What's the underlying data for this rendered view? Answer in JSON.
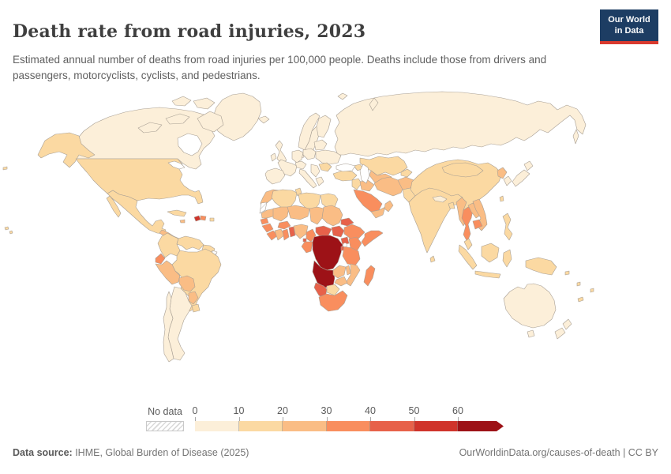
{
  "header": {
    "title": "Death rate from road injuries, 2023",
    "subtitle": "Estimated annual number of deaths from road injuries per 100,000 people. Deaths include those from drivers and passengers, motorcyclists, cyclists, and pedestrians."
  },
  "logo": {
    "line1": "Our World",
    "line2": "in Data",
    "bg_color": "#1d3d63",
    "accent_color": "#d93a2e"
  },
  "legend": {
    "no_data_label": "No data",
    "ticks": [
      "0",
      "10",
      "20",
      "30",
      "40",
      "50",
      "60"
    ]
  },
  "footer": {
    "source_label": "Data source:",
    "source_text": " IHME, Global Burden of Disease (2025)",
    "right_text": "OurWorldinData.org/causes-of-death | CC BY"
  },
  "chart_data": {
    "type": "choropleth",
    "title": "Death rate from road injuries, 2023",
    "year": "2023",
    "unit": "deaths from road injuries per 100,000 people",
    "legend_position": "bottom",
    "legend_bins": [
      {
        "range": "0-10",
        "color": "#FCEFD9"
      },
      {
        "range": "10-20",
        "color": "#FBD9A2"
      },
      {
        "range": "20-30",
        "color": "#FABD85"
      },
      {
        "range": "30-40",
        "color": "#F98E5E"
      },
      {
        "range": "40-50",
        "color": "#E7614A"
      },
      {
        "range": "50-60",
        "color": "#D0342B"
      },
      {
        "range": "60+",
        "color": "#9D1217"
      }
    ],
    "no_data_color": "hatched",
    "country_bin_assignments": {
      "canada": 0,
      "greenland": 0,
      "alaska": 1,
      "usa": 1,
      "mexico": 1,
      "cuba": 1,
      "jamaica": 2,
      "haiti": 5,
      "dominican-republic": 3,
      "puerto-rico": 1,
      "central-america": 2,
      "colombia": 1,
      "venezuela": 1,
      "guyanas": 1,
      "french-guiana": "nodata",
      "ecuador": 3,
      "peru": 2,
      "brazil": 1,
      "bolivia": 2,
      "paraguay": 2,
      "argentina": 0,
      "chile": 0,
      "uruguay": 1,
      "iceland": 0,
      "norway": 0,
      "sweden": 0,
      "finland": 0,
      "denmark": 0,
      "uk": 0,
      "ireland": 0,
      "france": 0,
      "iberia": 0,
      "germany": 0,
      "central-europe": 0,
      "italy": 0,
      "poland": 0,
      "baltics-belarus": 0,
      "ukraine": 0,
      "romania": 1,
      "balkans": 0,
      "greece": 0,
      "svalbard": 0,
      "novaya-zemlya": 0,
      "sakhalin": 0,
      "russia": 0,
      "kazakhstan": 1,
      "central-asia": 2,
      "kyrgyz-tajik": 1,
      "turkey": 1,
      "caucasus": 1,
      "syria-levant": 1,
      "iraq": 2,
      "saudi-arabia": 3,
      "yemen": 2,
      "oman": 2,
      "iran": 2,
      "afghanistan": 2,
      "pakistan": 1,
      "india": 1,
      "sri-lanka": 1,
      "nepal": 0,
      "bangladesh": 1,
      "myanmar": 2,
      "thailand": 3,
      "laos": 2,
      "vietnam": 2,
      "cambodia": 3,
      "malaysia": 1,
      "sumatra": 1,
      "java": 1,
      "borneo": 1,
      "sulawesi": 1,
      "new-guinea": 1,
      "philippines": 1,
      "taiwan": 1,
      "china": 1,
      "mongolia": 1,
      "north-korea": 2,
      "south-korea": 0,
      "japan-hokkaido": 0,
      "japan-honshu": 0,
      "morocco": 2,
      "western-sahara": "nodata",
      "algeria": 1,
      "tunisia": 1,
      "libya": 1,
      "egypt": 1,
      "mauritania": 2,
      "mali": 2,
      "niger": 2,
      "chad": 2,
      "sudan": 2,
      "senegal": 3,
      "guinea": 3,
      "sierra-leone-liberia": 3,
      "cote-divoire": 2,
      "ghana": 3,
      "togo-benin": 4,
      "burkina-faso": 3,
      "nigeria": 2,
      "cameroon": 3,
      "equatorial-guinea": 4,
      "central-african-republic": 4,
      "south-sudan": 4,
      "ethiopia": 3,
      "eritrea": 4,
      "somalia": 3,
      "uganda": 4,
      "kenya": 3,
      "gabon-congo": 3,
      "drc": 6,
      "rwanda-burundi": 4,
      "tanzania": 3,
      "angola": 6,
      "zambia": 2,
      "malawi": 2,
      "mozambique": 2,
      "zimbabwe": 2,
      "botswana": 1,
      "namibia": 4,
      "south-africa": 3,
      "madagascar": 3,
      "australia": 0,
      "tasmania": 0,
      "new-zealand-north": 0,
      "new-zealand-south": 0,
      "solomon": 1,
      "vanuatu": 1,
      "fiji": 1,
      "new-caledonia": 1,
      "hawaii": 1,
      "aleutian": 1
    },
    "highlights": {
      "highest_region": "Central Africa (DR Congo, Angola) in 60+ bin",
      "lowest_regions": "Europe, Canada, Australia, Japan, Argentina in 0-10 bin",
      "no_data_countries": [
        "Western Sahara",
        "French Guiana"
      ]
    }
  },
  "map": {
    "ocean_color": "#ffffff",
    "border_color": "#a89f94"
  }
}
